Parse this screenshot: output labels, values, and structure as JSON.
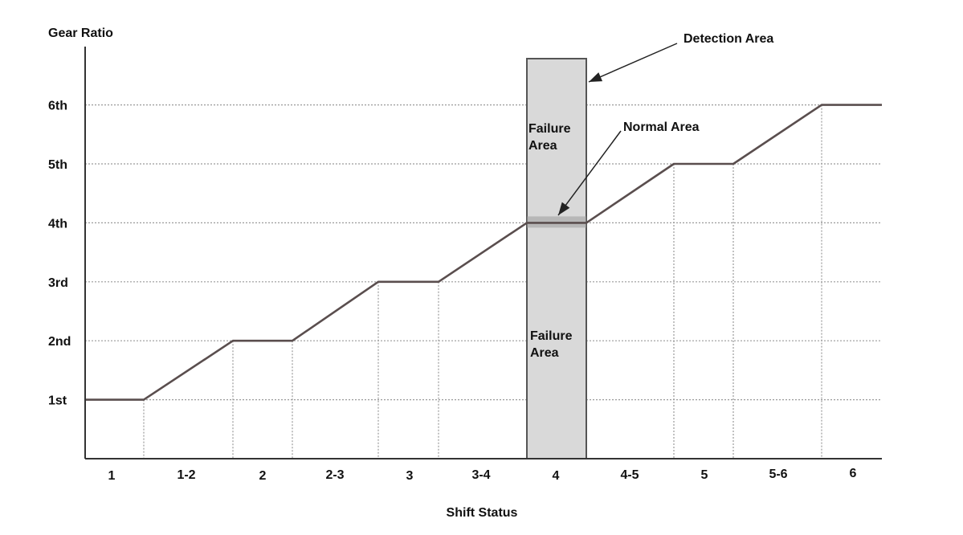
{
  "chart_data": {
    "type": "line",
    "ylabel": "Gear Ratio",
    "xlabel": "Shift Status",
    "y_ticks": [
      "1st",
      "2nd",
      "3rd",
      "4th",
      "5th",
      "6th"
    ],
    "x_categories": [
      "1",
      "1-2",
      "2",
      "2-3",
      "3",
      "3-4",
      "4",
      "4-5",
      "5",
      "5-6",
      "6"
    ],
    "series_points": [
      {
        "x": "1",
        "y": 1
      },
      {
        "x": "1-2",
        "y": 2
      },
      {
        "x": "2",
        "y": 2
      },
      {
        "x": "2-3",
        "y": 3
      },
      {
        "x": "3",
        "y": 3
      },
      {
        "x": "3-4",
        "y": 4
      },
      {
        "x": "4",
        "y": 4
      },
      {
        "x": "4-5",
        "y": 5
      },
      {
        "x": "5",
        "y": 5
      },
      {
        "x": "5-6",
        "y": 6
      },
      {
        "x": "6",
        "y": 6
      }
    ],
    "grid": "dotted horizontal at each gear, dotted vertical at each shift boundary",
    "detection_band_category": "4",
    "annotations": {
      "detection_area": "Detection Area",
      "normal_area": "Normal Area",
      "failure_area_upper": [
        "Failure",
        "Area"
      ],
      "failure_area_lower": [
        "Failure",
        "Area"
      ]
    },
    "colors": {
      "line": "#5a4e4e",
      "band_fill": "#d9d9d9",
      "band_stroke": "#555555",
      "normal_band": "#9a9a9a",
      "grid": "#9a9a9a",
      "axis": "#333333"
    }
  }
}
